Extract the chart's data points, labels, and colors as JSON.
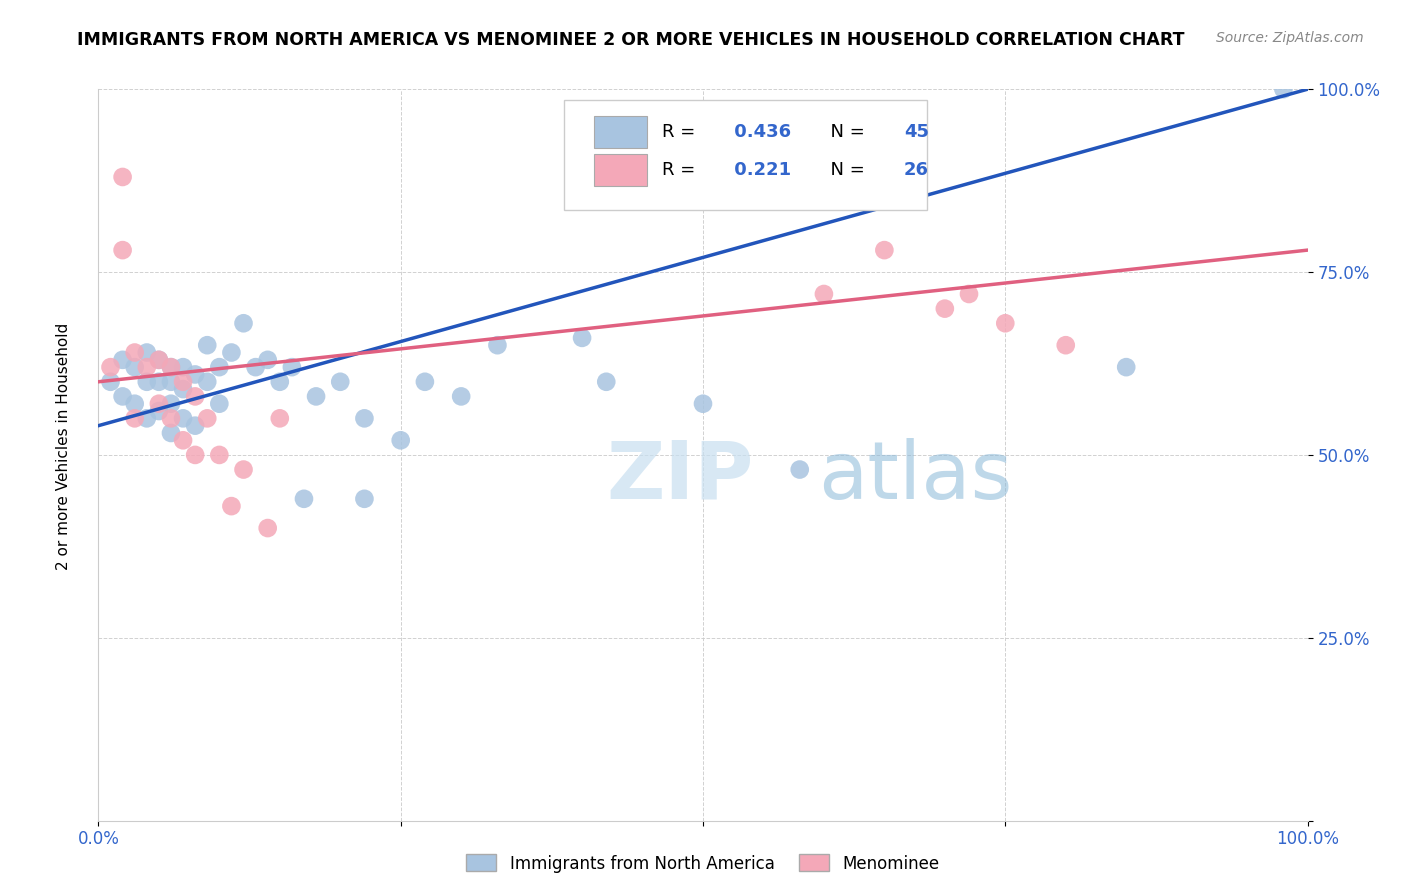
{
  "title": "IMMIGRANTS FROM NORTH AMERICA VS MENOMINEE 2 OR MORE VEHICLES IN HOUSEHOLD CORRELATION CHART",
  "source": "Source: ZipAtlas.com",
  "ylabel": "2 or more Vehicles in Household",
  "xlim": [
    0.0,
    1.0
  ],
  "ylim": [
    0.0,
    1.0
  ],
  "xticks": [
    0.0,
    0.25,
    0.5,
    0.75,
    1.0
  ],
  "xticklabels": [
    "0.0%",
    "",
    "",
    "",
    "100.0%"
  ],
  "yticks": [
    0.0,
    0.25,
    0.5,
    0.75,
    1.0
  ],
  "yticklabels": [
    "",
    "25.0%",
    "50.0%",
    "75.0%",
    "100.0%"
  ],
  "blue_R": 0.436,
  "blue_N": 45,
  "pink_R": 0.221,
  "pink_N": 26,
  "blue_color": "#a8c4e0",
  "pink_color": "#f4a8b8",
  "blue_line_color": "#2255bb",
  "pink_line_color": "#e06080",
  "blue_label": "Immigrants from North America",
  "pink_label": "Menominee",
  "watermark_zip": "ZIP",
  "watermark_atlas": "atlas",
  "blue_x": [
    0.01,
    0.02,
    0.02,
    0.03,
    0.03,
    0.04,
    0.04,
    0.04,
    0.05,
    0.05,
    0.05,
    0.06,
    0.06,
    0.06,
    0.06,
    0.07,
    0.07,
    0.07,
    0.08,
    0.08,
    0.09,
    0.09,
    0.1,
    0.1,
    0.11,
    0.12,
    0.13,
    0.14,
    0.15,
    0.16,
    0.17,
    0.18,
    0.2,
    0.22,
    0.22,
    0.25,
    0.27,
    0.3,
    0.33,
    0.4,
    0.42,
    0.5,
    0.58,
    0.85,
    0.98
  ],
  "blue_y": [
    0.6,
    0.63,
    0.58,
    0.62,
    0.57,
    0.64,
    0.6,
    0.55,
    0.63,
    0.6,
    0.56,
    0.62,
    0.6,
    0.57,
    0.53,
    0.62,
    0.59,
    0.55,
    0.61,
    0.54,
    0.65,
    0.6,
    0.62,
    0.57,
    0.64,
    0.68,
    0.62,
    0.63,
    0.6,
    0.62,
    0.44,
    0.58,
    0.6,
    0.55,
    0.44,
    0.52,
    0.6,
    0.58,
    0.65,
    0.66,
    0.6,
    0.57,
    0.48,
    0.62,
    1.0
  ],
  "pink_x": [
    0.01,
    0.02,
    0.02,
    0.03,
    0.03,
    0.04,
    0.05,
    0.05,
    0.06,
    0.06,
    0.07,
    0.07,
    0.08,
    0.08,
    0.09,
    0.1,
    0.11,
    0.12,
    0.14,
    0.15,
    0.6,
    0.65,
    0.7,
    0.72,
    0.75,
    0.8
  ],
  "pink_y": [
    0.62,
    0.88,
    0.78,
    0.64,
    0.55,
    0.62,
    0.63,
    0.57,
    0.62,
    0.55,
    0.6,
    0.52,
    0.58,
    0.5,
    0.55,
    0.5,
    0.43,
    0.48,
    0.4,
    0.55,
    0.72,
    0.78,
    0.7,
    0.72,
    0.68,
    0.65
  ]
}
